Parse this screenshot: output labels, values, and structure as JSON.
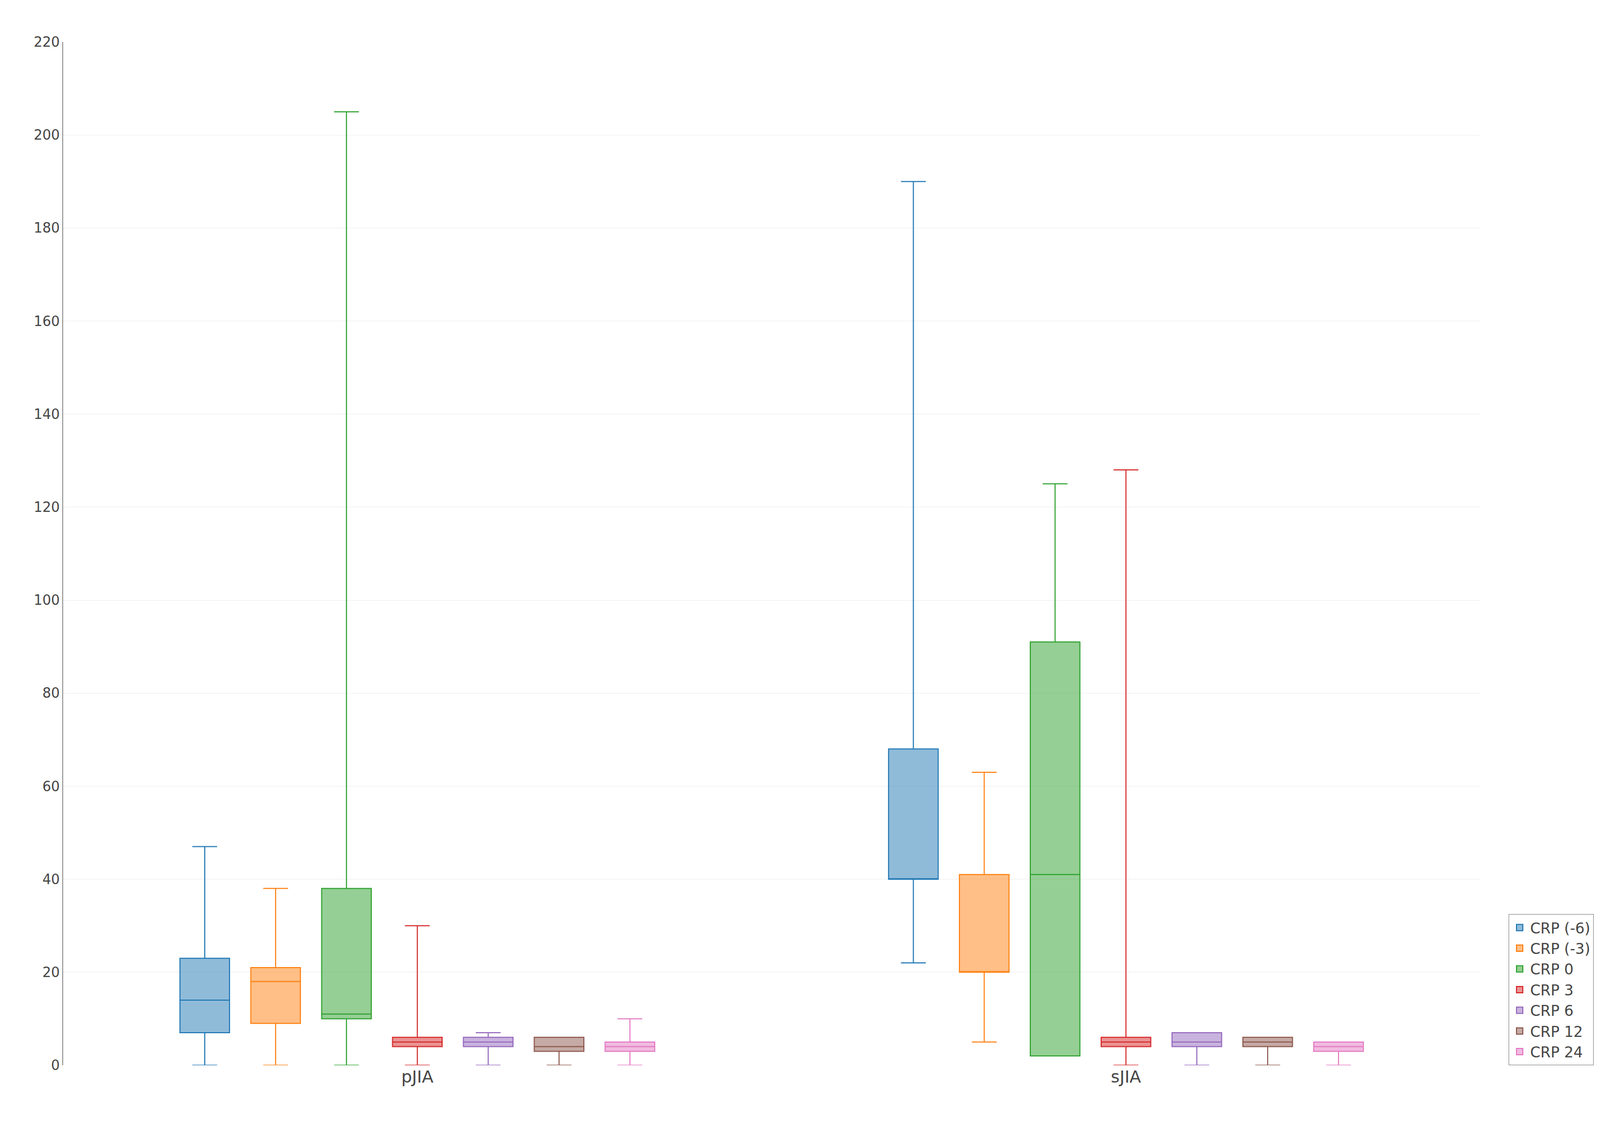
{
  "chart_data": {
    "type": "box",
    "categories": [
      "pJIA",
      "sJIA"
    ],
    "series": [
      {
        "name": "CRP (-6)",
        "whislo": [
          0,
          22
        ],
        "q1": [
          7,
          40
        ],
        "median": [
          14,
          40
        ],
        "q3": [
          23,
          68
        ],
        "whishi": [
          47,
          190
        ]
      },
      {
        "name": "CRP (-3)",
        "whislo": [
          0,
          5
        ],
        "q1": [
          9,
          20
        ],
        "median": [
          18,
          20
        ],
        "q3": [
          21,
          41
        ],
        "whishi": [
          38,
          63
        ]
      },
      {
        "name": "CRP 0",
        "whislo": [
          0,
          2
        ],
        "q1": [
          10,
          2
        ],
        "median": [
          11,
          41
        ],
        "q3": [
          38,
          91
        ],
        "whishi": [
          205,
          125
        ]
      },
      {
        "name": "CRP 3",
        "whislo": [
          0,
          0
        ],
        "q1": [
          4,
          4
        ],
        "median": [
          5,
          5
        ],
        "q3": [
          6,
          6
        ],
        "whishi": [
          30,
          128
        ]
      },
      {
        "name": "CRP 6",
        "whislo": [
          0,
          0
        ],
        "q1": [
          4,
          4
        ],
        "median": [
          5,
          5
        ],
        "q3": [
          6,
          7
        ],
        "whishi": [
          7,
          7
        ]
      },
      {
        "name": "CRP 12",
        "whislo": [
          0,
          0
        ],
        "q1": [
          3,
          4
        ],
        "median": [
          4,
          5
        ],
        "q3": [
          6,
          6
        ],
        "whishi": [
          6,
          6
        ]
      },
      {
        "name": "CRP 24",
        "whislo": [
          0,
          0
        ],
        "q1": [
          3,
          3
        ],
        "median": [
          4,
          4
        ],
        "q3": [
          5,
          5
        ],
        "whishi": [
          10,
          5
        ]
      }
    ],
    "ylim": [
      0,
      220
    ],
    "yticks": [
      0,
      20,
      40,
      60,
      80,
      100,
      120,
      140,
      160,
      180,
      200,
      220
    ],
    "grid": true,
    "legend": "lower right"
  }
}
